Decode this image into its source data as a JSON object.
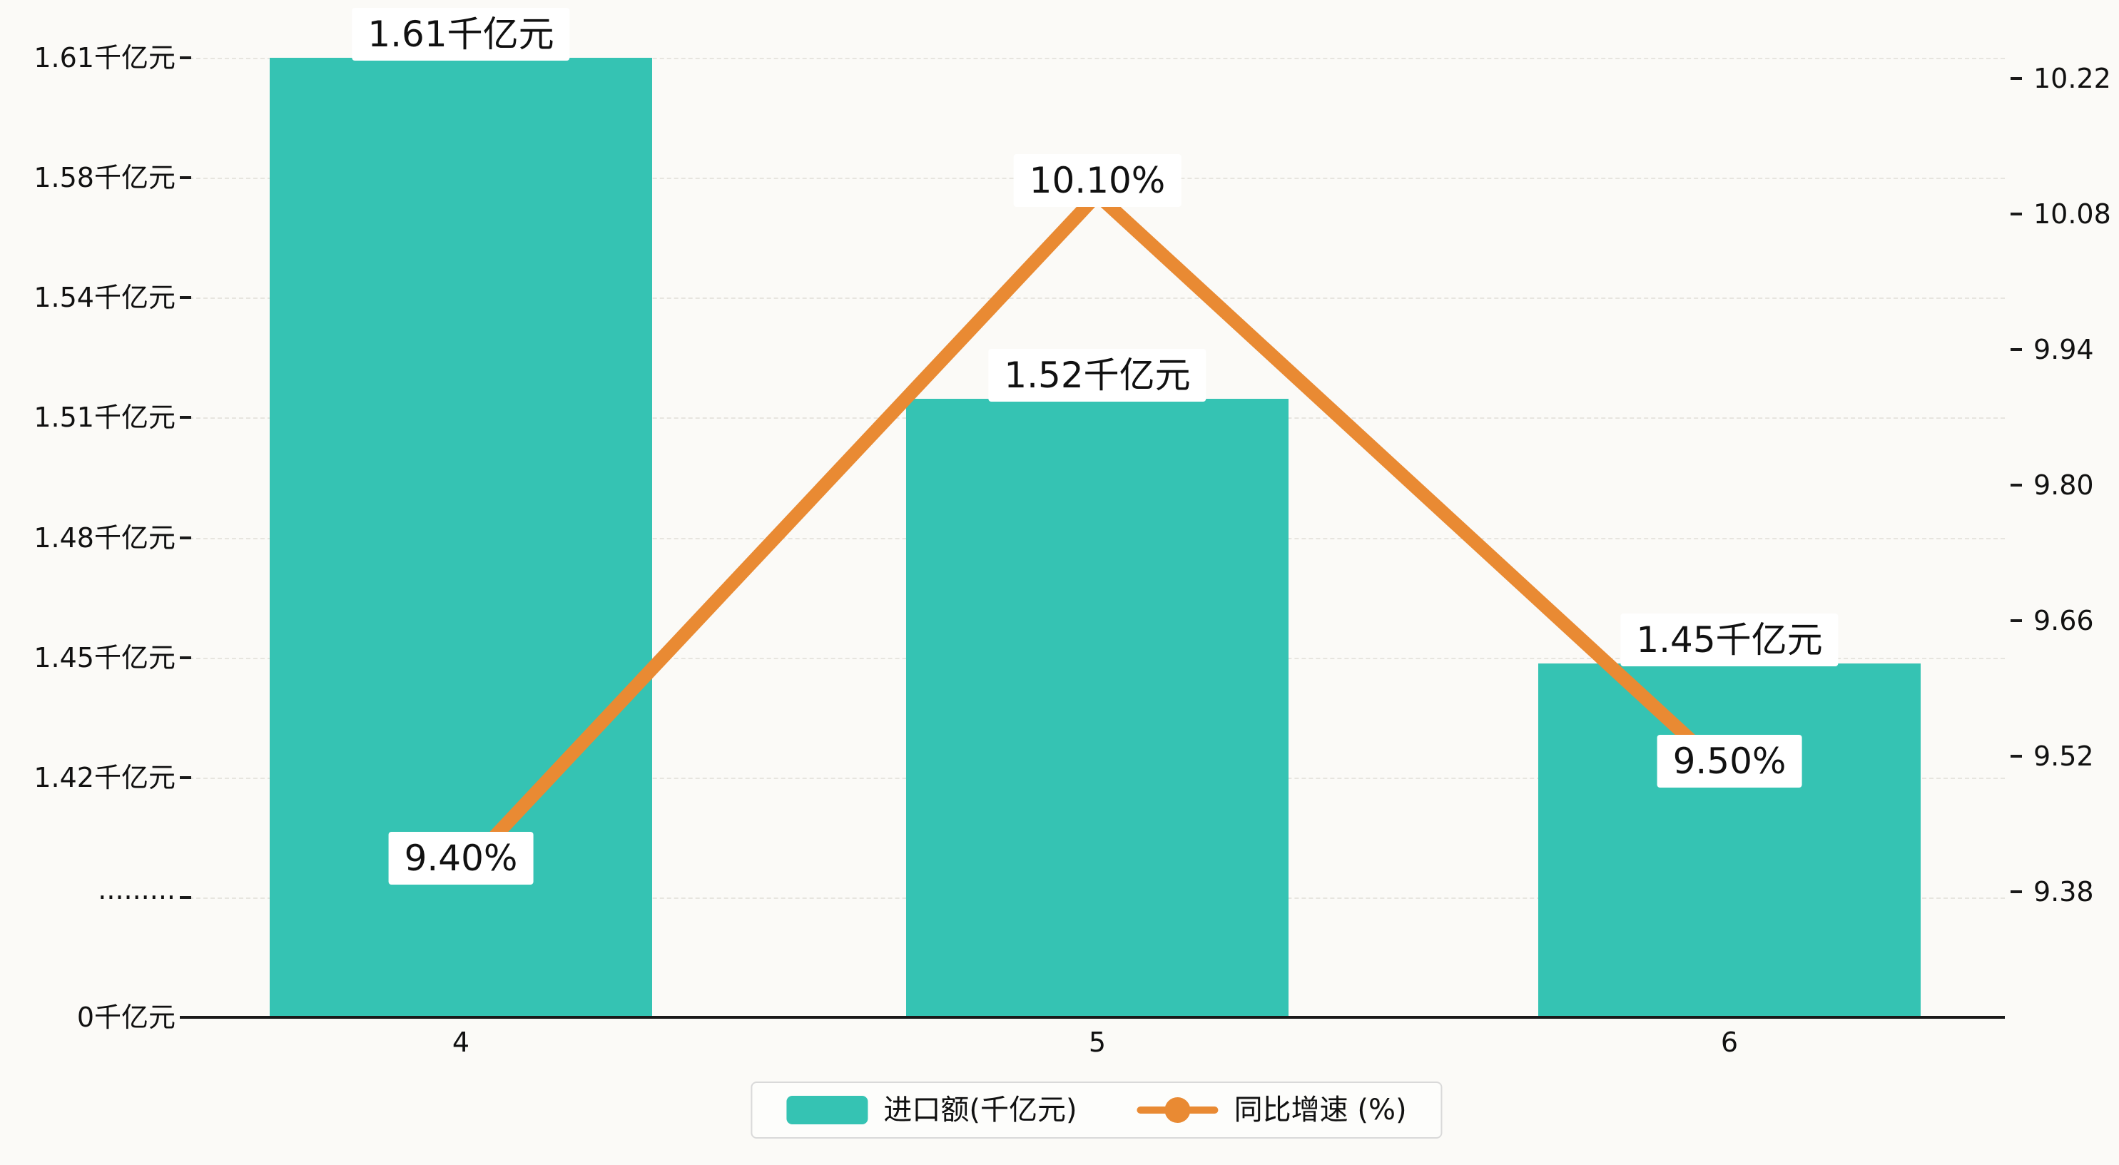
{
  "chart_data": {
    "type": "bar+line",
    "categories": [
      "4",
      "5",
      "6"
    ],
    "series": [
      {
        "name": "进口额(千亿元)",
        "type": "bar",
        "axis": "left",
        "color": "#35c3b3",
        "values": [
          1.61,
          1.52,
          1.45
        ],
        "labels": [
          "1.61千亿元",
          "1.52千亿元",
          "1.45千亿元"
        ]
      },
      {
        "name": "同比增速 (%)",
        "type": "line",
        "axis": "right",
        "color": "#e98a33",
        "values": [
          9.4,
          10.1,
          9.5
        ],
        "labels": [
          "9.40%",
          "10.10%",
          "9.50%"
        ]
      }
    ],
    "left_axis": {
      "tick_labels": [
        "1.61千亿元",
        "1.58千亿元",
        "1.54千亿元",
        "1.51千亿元",
        "1.48千亿元",
        "1.45千亿元",
        "1.42千亿元",
        "·········",
        "0千亿元"
      ],
      "range_top": 1.61,
      "range_break_bottom": 1.42,
      "broken_axis": true
    },
    "right_axis": {
      "tick_labels": [
        "10.22",
        "10.08",
        "9.94",
        "9.80",
        "9.66",
        "9.52",
        "9.38"
      ],
      "max": 10.22,
      "min": 9.38,
      "step": 0.14
    },
    "legend": [
      {
        "label": "进口额(千亿元)",
        "marker": "bar-swatch",
        "color": "#35c3b3"
      },
      {
        "label": "同比增速 (%)",
        "marker": "line-dot-swatch",
        "color": "#e98a33"
      }
    ],
    "grid": "dashed-horizontal",
    "legend_position": "bottom-center"
  },
  "colors": {
    "background": "#fbfaf7",
    "text": "#111111",
    "axis": "#1a1a1a",
    "gridline": "#e7e5df",
    "label_box_bg": "#ffffff",
    "legend_border": "#d9d9d9"
  }
}
